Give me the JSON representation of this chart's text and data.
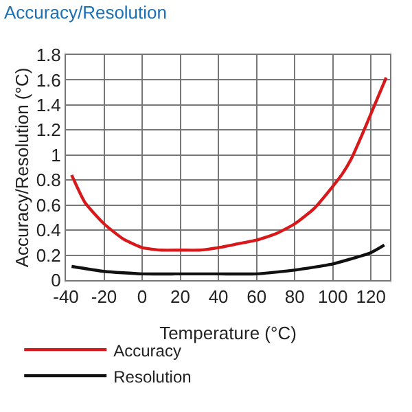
{
  "chart_data": {
    "type": "line",
    "title": "Accuracy/Resolution",
    "xlabel": "Temperature (°C)",
    "ylabel": "Accuracy/Resolution (°C)",
    "series": [
      {
        "name": "Accuracy",
        "color": "#d7191c",
        "x": [
          -37,
          -30,
          -20,
          -10,
          0,
          10,
          20,
          30,
          40,
          50,
          60,
          70,
          80,
          90,
          100,
          105,
          110,
          115,
          120,
          128
        ],
        "values": [
          0.84,
          0.62,
          0.45,
          0.33,
          0.26,
          0.24,
          0.24,
          0.24,
          0.26,
          0.29,
          0.32,
          0.37,
          0.45,
          0.57,
          0.75,
          0.85,
          0.98,
          1.15,
          1.33,
          1.62
        ]
      },
      {
        "name": "Resolution",
        "color": "#111111",
        "x": [
          -37,
          -20,
          0,
          20,
          40,
          60,
          80,
          100,
          120,
          127
        ],
        "values": [
          0.11,
          0.07,
          0.05,
          0.05,
          0.05,
          0.05,
          0.08,
          0.13,
          0.22,
          0.28
        ]
      }
    ],
    "xlim": [
      -40,
      130
    ],
    "xticks": [
      -40,
      -20,
      0,
      20,
      40,
      60,
      80,
      100,
      120
    ],
    "ylim": [
      0,
      1.8
    ],
    "yticks": [
      0,
      0.2,
      0.4,
      0.6,
      0.8,
      1,
      1.2,
      1.4,
      1.6,
      1.8
    ],
    "grid": true,
    "legend": "bottom",
    "marker": "none",
    "line_style": "solid"
  }
}
